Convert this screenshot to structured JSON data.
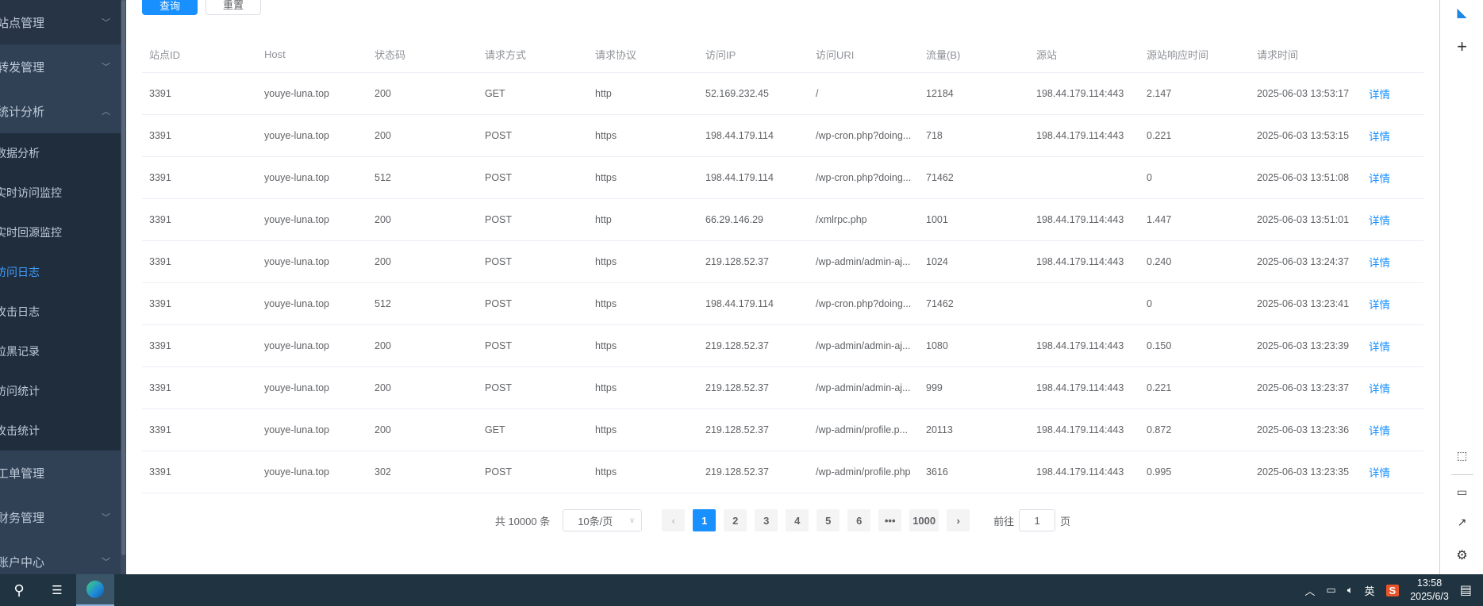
{
  "sidebar": {
    "groups_top": [
      {
        "label": "站点管理",
        "expanded": false
      },
      {
        "label": "转发管理",
        "expanded": false
      },
      {
        "label": "统计分析",
        "expanded": true
      }
    ],
    "sub_items": [
      "数据分析",
      "实时访问监控",
      "实时回源监控",
      "访问日志",
      "攻击日志",
      "拉黑记录",
      "访问统计",
      "攻击统计"
    ],
    "active_sub": "访问日志",
    "groups_bottom": [
      {
        "label": "工单管理"
      },
      {
        "label": "财务管理"
      },
      {
        "label": "账户中心"
      }
    ]
  },
  "toolbar": {
    "query_label": "查询",
    "reset_label": "重置"
  },
  "table": {
    "columns": [
      "站点ID",
      "Host",
      "状态码",
      "请求方式",
      "请求协议",
      "访问IP",
      "访问URI",
      "流量(B)",
      "源站",
      "源站响应时间",
      "请求时间",
      ""
    ],
    "rows": [
      [
        "3391",
        "youye-luna.top",
        "200",
        "GET",
        "http",
        "52.169.232.45",
        "/",
        "12184",
        "198.44.179.114:443",
        "2.147",
        "2025-06-03 13:53:17",
        "详情"
      ],
      [
        "3391",
        "youye-luna.top",
        "200",
        "POST",
        "https",
        "198.44.179.114",
        "/wp-cron.php?doing...",
        "718",
        "198.44.179.114:443",
        "0.221",
        "2025-06-03 13:53:15",
        "详情"
      ],
      [
        "3391",
        "youye-luna.top",
        "512",
        "POST",
        "https",
        "198.44.179.114",
        "/wp-cron.php?doing...",
        "71462",
        "",
        "0",
        "2025-06-03 13:51:08",
        "详情"
      ],
      [
        "3391",
        "youye-luna.top",
        "200",
        "POST",
        "http",
        "66.29.146.29",
        "/xmlrpc.php",
        "1001",
        "198.44.179.114:443",
        "1.447",
        "2025-06-03 13:51:01",
        "详情"
      ],
      [
        "3391",
        "youye-luna.top",
        "200",
        "POST",
        "https",
        "219.128.52.37",
        "/wp-admin/admin-aj...",
        "1024",
        "198.44.179.114:443",
        "0.240",
        "2025-06-03 13:24:37",
        "详情"
      ],
      [
        "3391",
        "youye-luna.top",
        "512",
        "POST",
        "https",
        "198.44.179.114",
        "/wp-cron.php?doing...",
        "71462",
        "",
        "0",
        "2025-06-03 13:23:41",
        "详情"
      ],
      [
        "3391",
        "youye-luna.top",
        "200",
        "POST",
        "https",
        "219.128.52.37",
        "/wp-admin/admin-aj...",
        "1080",
        "198.44.179.114:443",
        "0.150",
        "2025-06-03 13:23:39",
        "详情"
      ],
      [
        "3391",
        "youye-luna.top",
        "200",
        "POST",
        "https",
        "219.128.52.37",
        "/wp-admin/admin-aj...",
        "999",
        "198.44.179.114:443",
        "0.221",
        "2025-06-03 13:23:37",
        "详情"
      ],
      [
        "3391",
        "youye-luna.top",
        "200",
        "GET",
        "https",
        "219.128.52.37",
        "/wp-admin/profile.p...",
        "20113",
        "198.44.179.114:443",
        "0.872",
        "2025-06-03 13:23:36",
        "详情"
      ],
      [
        "3391",
        "youye-luna.top",
        "302",
        "POST",
        "https",
        "219.128.52.37",
        "/wp-admin/profile.php",
        "3616",
        "198.44.179.114:443",
        "0.995",
        "2025-06-03 13:23:35",
        "详情"
      ]
    ]
  },
  "pagination": {
    "total": "共 10000 条",
    "page_size": "10条/页",
    "pages": [
      "1",
      "2",
      "3",
      "4",
      "5",
      "6",
      "•••",
      "1000"
    ],
    "current": "1",
    "goto_label": "前往",
    "goto_value": "1",
    "goto_suffix": "页"
  },
  "taskbar": {
    "ime": "英",
    "time": "13:58",
    "date": "2025/6/3"
  },
  "colors": {
    "accent": "#1890ff",
    "sidebar_bg": "#304156",
    "submenu_bg": "#1f2d3d",
    "taskbar_bg": "#1f3340"
  }
}
